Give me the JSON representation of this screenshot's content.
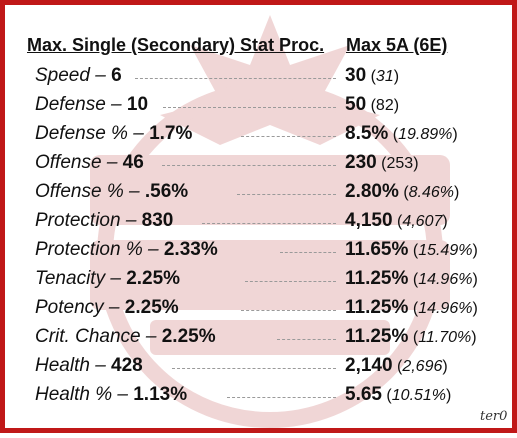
{
  "header": {
    "left": "Max. Single (Secondary) Stat Proc.",
    "right": "Max 5A (6E)"
  },
  "rows": [
    {
      "stat": "Speed",
      "dash": " – ",
      "value": "6",
      "max5a": "30",
      "max6e": "31",
      "italic6e": true,
      "leader_start": 130
    },
    {
      "stat": "Defense",
      "dash": " – ",
      "value": "10",
      "max5a": "50",
      "max6e": "82",
      "italic6e": false,
      "leader_start": 158
    },
    {
      "stat": "Defense %",
      "dash": " – ",
      "value": "1.7%",
      "max5a": "8.5%",
      "max6e": "19.89%",
      "italic6e": true,
      "leader_start": 236
    },
    {
      "stat": "Offense",
      "dash": " – ",
      "value": "46",
      "max5a": "230",
      "max6e": "253",
      "italic6e": false,
      "leader_start": 157
    },
    {
      "stat": "Offense %",
      "dash": " – ",
      "value": ".56%",
      "max5a": "2.80%",
      "max6e": "8.46%",
      "italic6e": true,
      "leader_start": 232
    },
    {
      "stat": "Protection",
      "dash": " – ",
      "value": "830",
      "max5a": "4,150",
      "max6e": "4,607",
      "italic6e": true,
      "leader_start": 197
    },
    {
      "stat": "Protection %",
      "dash": " – ",
      "value": "2.33%",
      "max5a": "11.65%",
      "max6e": "15.49%",
      "italic6e": true,
      "leader_start": 275
    },
    {
      "stat": "Tenacity",
      "dash": " – ",
      "value": "2.25%",
      "max5a": "11.25%",
      "max6e": "14.96%",
      "italic6e": true,
      "leader_start": 240
    },
    {
      "stat": "Potency",
      "dash": " – ",
      "value": "2.25%",
      "max5a": "11.25%",
      "max6e": "14.96%",
      "italic6e": true,
      "leader_start": 236
    },
    {
      "stat": "Crit. Chance",
      "dash": " – ",
      "value": "2.25%",
      "max5a": "11.25%",
      "max6e": "11.70%",
      "italic6e": true,
      "leader_start": 272
    },
    {
      "stat": "Health",
      "dash": " – ",
      "value": "428",
      "max5a": "2,140",
      "max6e": "2,696",
      "italic6e": true,
      "leader_start": 167
    },
    {
      "stat": "Health %",
      "dash": " – ",
      "value": "1.13%",
      "max5a": "5.65",
      "max6e": "10.51%",
      "italic6e": true,
      "leader_start": 222
    }
  ],
  "colors": {
    "border": "#c01818",
    "watermark": "#b02020"
  },
  "signature": "ter0"
}
